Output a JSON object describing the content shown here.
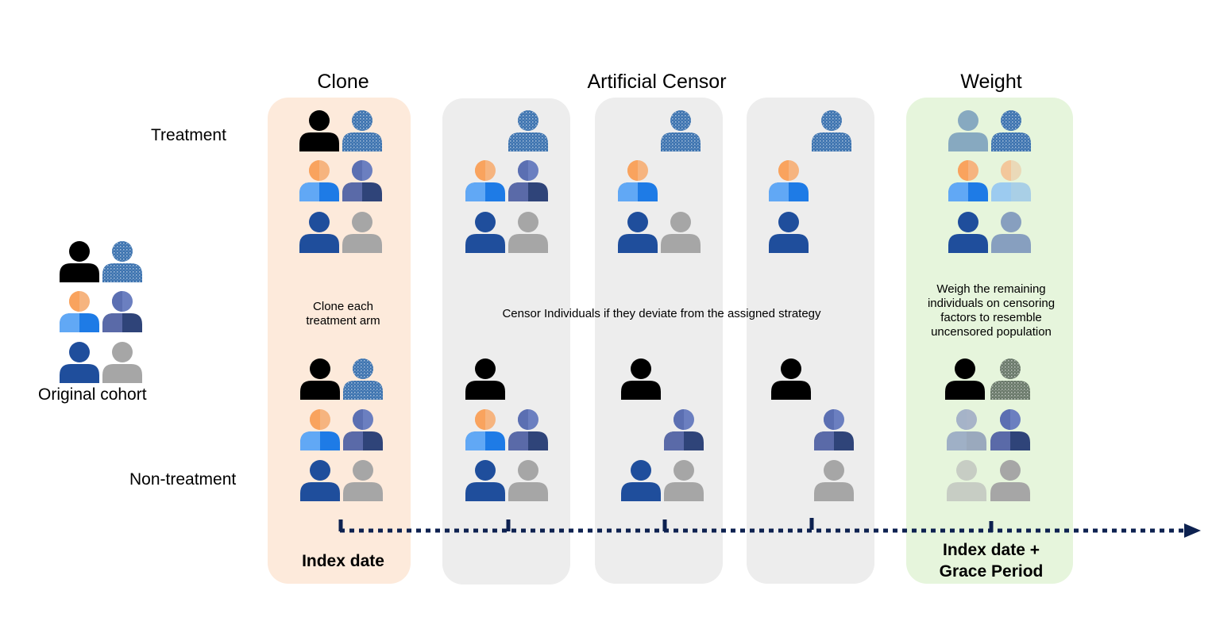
{
  "headers": {
    "clone": "Clone",
    "artificial_censor": "Artificial Censor",
    "weight": "Weight"
  },
  "row_labels": {
    "treatment": "Treatment",
    "non_treatment": "Non-treatment"
  },
  "cohort_label": "Original cohort",
  "notes": {
    "clone": "Clone each treatment arm",
    "censor": "Censor Individuals if they deviate from the assigned strategy",
    "weight": "Weigh the remaining individuals on censoring factors to resemble uncensored population"
  },
  "timeline_labels": {
    "index_date": "Index date",
    "grace_period_line1": "Index date +",
    "grace_period_line2": "Grace Period"
  },
  "colors": {
    "clone_panel": "#fdeadb",
    "censor_panel": "#ededed",
    "weight_panel": "#e6f5dc",
    "timeline": "#0d2150",
    "person_black": "#000000",
    "person_navy": "#1f4e9c",
    "person_grey": "#a6a6a6",
    "person_speckled": "#3e74b0",
    "person_indigo": "#5b6fb2"
  }
}
